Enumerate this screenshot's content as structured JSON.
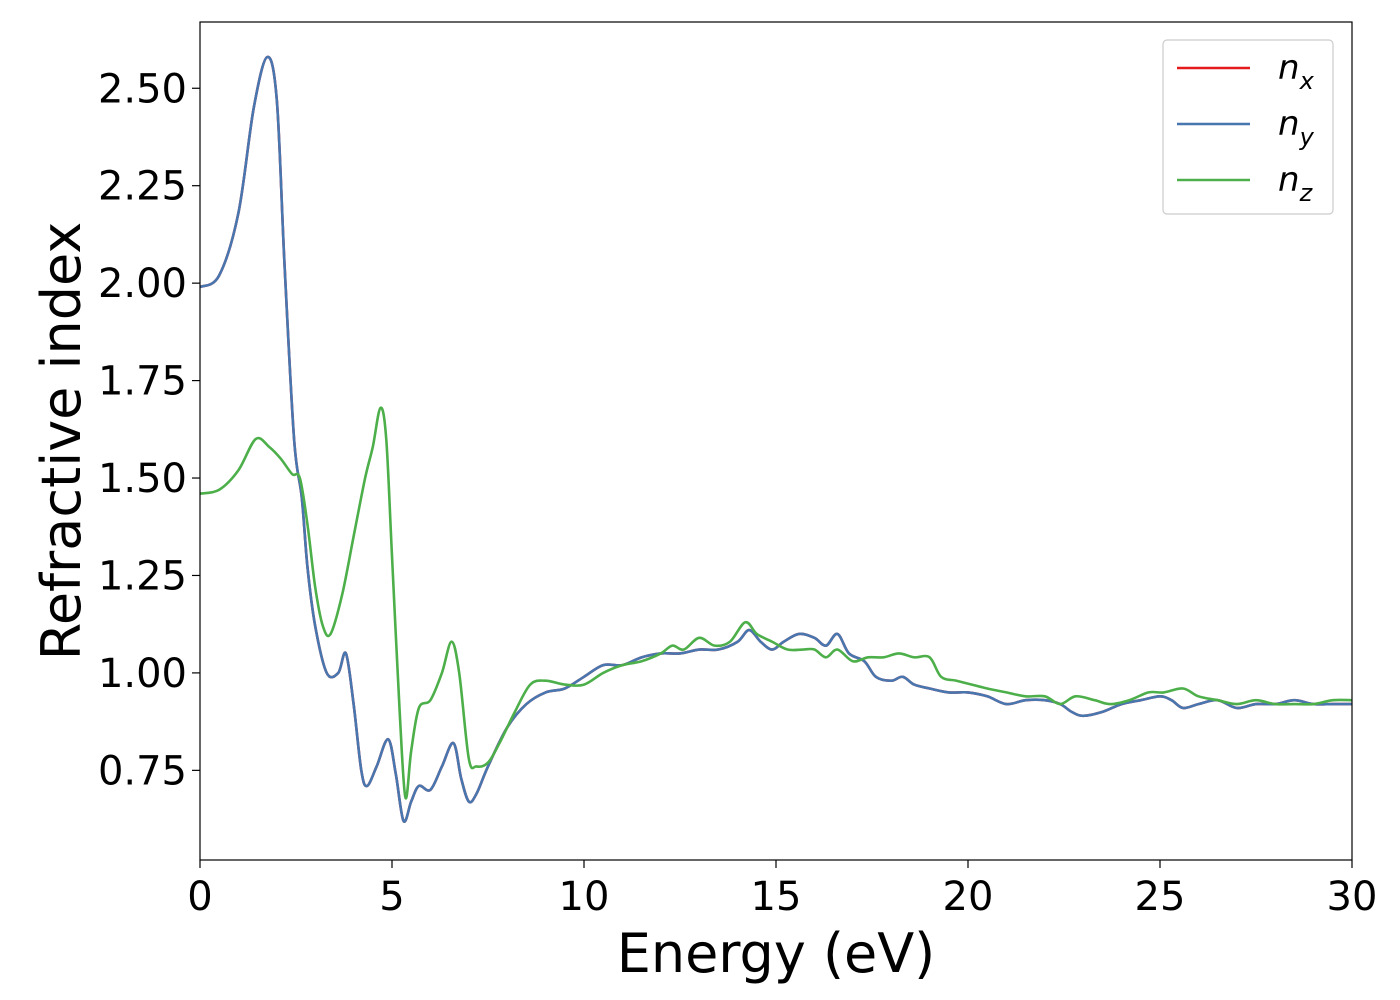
{
  "chart_data": {
    "type": "line",
    "title": "",
    "xlabel": "Energy (eV)",
    "ylabel": "Refractive index",
    "xlim": [
      0,
      30
    ],
    "ylim": [
      0.52,
      2.67
    ],
    "x_ticks": [
      0,
      5,
      10,
      15,
      20,
      25,
      30
    ],
    "x_tick_labels": [
      "0",
      "5",
      "10",
      "15",
      "20",
      "25",
      "30"
    ],
    "y_ticks": [
      0.75,
      1.0,
      1.25,
      1.5,
      1.75,
      2.0,
      2.25,
      2.5
    ],
    "y_tick_labels": [
      "0.75",
      "1.00",
      "1.25",
      "1.50",
      "1.75",
      "2.00",
      "2.25",
      "2.50"
    ],
    "grid": false,
    "legend_position": "top-right",
    "series": [
      {
        "name": "n",
        "sub": "x",
        "color": "#e41a1c",
        "points": [
          [
            0,
            1.99
          ],
          [
            0.5,
            2.02
          ],
          [
            1.0,
            2.18
          ],
          [
            1.4,
            2.45
          ],
          [
            1.75,
            2.58
          ],
          [
            2.0,
            2.47
          ],
          [
            2.2,
            2.05
          ],
          [
            2.45,
            1.6
          ],
          [
            2.65,
            1.45
          ],
          [
            2.8,
            1.27
          ],
          [
            3.0,
            1.12
          ],
          [
            3.3,
            1.0
          ],
          [
            3.6,
            1.0
          ],
          [
            3.8,
            1.05
          ],
          [
            4.0,
            0.92
          ],
          [
            4.2,
            0.75
          ],
          [
            4.35,
            0.71
          ],
          [
            4.6,
            0.76
          ],
          [
            4.9,
            0.83
          ],
          [
            5.1,
            0.74
          ],
          [
            5.3,
            0.62
          ],
          [
            5.5,
            0.67
          ],
          [
            5.7,
            0.71
          ],
          [
            6.0,
            0.7
          ],
          [
            6.3,
            0.76
          ],
          [
            6.6,
            0.82
          ],
          [
            6.8,
            0.73
          ],
          [
            7.0,
            0.67
          ],
          [
            7.2,
            0.69
          ],
          [
            7.5,
            0.76
          ],
          [
            8.0,
            0.86
          ],
          [
            8.5,
            0.92
          ],
          [
            9.0,
            0.95
          ],
          [
            9.5,
            0.96
          ],
          [
            10.0,
            0.99
          ],
          [
            10.5,
            1.02
          ],
          [
            11.0,
            1.02
          ],
          [
            11.5,
            1.04
          ],
          [
            12.0,
            1.05
          ],
          [
            12.5,
            1.05
          ],
          [
            13.0,
            1.06
          ],
          [
            13.5,
            1.06
          ],
          [
            14.0,
            1.08
          ],
          [
            14.3,
            1.11
          ],
          [
            14.6,
            1.08
          ],
          [
            14.9,
            1.06
          ],
          [
            15.2,
            1.08
          ],
          [
            15.6,
            1.1
          ],
          [
            16.0,
            1.09
          ],
          [
            16.3,
            1.07
          ],
          [
            16.6,
            1.1
          ],
          [
            16.9,
            1.05
          ],
          [
            17.3,
            1.03
          ],
          [
            17.6,
            0.99
          ],
          [
            18.0,
            0.98
          ],
          [
            18.3,
            0.99
          ],
          [
            18.6,
            0.97
          ],
          [
            19.0,
            0.96
          ],
          [
            19.5,
            0.95
          ],
          [
            20.0,
            0.95
          ],
          [
            20.5,
            0.94
          ],
          [
            21.0,
            0.92
          ],
          [
            21.5,
            0.93
          ],
          [
            22.0,
            0.93
          ],
          [
            22.4,
            0.92
          ],
          [
            22.7,
            0.9
          ],
          [
            23.0,
            0.89
          ],
          [
            23.5,
            0.9
          ],
          [
            24.0,
            0.92
          ],
          [
            24.5,
            0.93
          ],
          [
            25.0,
            0.94
          ],
          [
            25.3,
            0.93
          ],
          [
            25.6,
            0.91
          ],
          [
            26.0,
            0.92
          ],
          [
            26.5,
            0.93
          ],
          [
            27.0,
            0.91
          ],
          [
            27.5,
            0.92
          ],
          [
            28.0,
            0.92
          ],
          [
            28.5,
            0.93
          ],
          [
            29.0,
            0.92
          ],
          [
            29.5,
            0.92
          ],
          [
            30.0,
            0.92
          ]
        ]
      },
      {
        "name": "n",
        "sub": "y",
        "color": "#4877b0",
        "points": [
          [
            0,
            1.99
          ],
          [
            0.5,
            2.02
          ],
          [
            1.0,
            2.18
          ],
          [
            1.4,
            2.45
          ],
          [
            1.75,
            2.58
          ],
          [
            2.0,
            2.47
          ],
          [
            2.2,
            2.05
          ],
          [
            2.45,
            1.6
          ],
          [
            2.65,
            1.45
          ],
          [
            2.8,
            1.27
          ],
          [
            3.0,
            1.12
          ],
          [
            3.3,
            1.0
          ],
          [
            3.6,
            1.0
          ],
          [
            3.8,
            1.05
          ],
          [
            4.0,
            0.92
          ],
          [
            4.2,
            0.75
          ],
          [
            4.35,
            0.71
          ],
          [
            4.6,
            0.76
          ],
          [
            4.9,
            0.83
          ],
          [
            5.1,
            0.74
          ],
          [
            5.3,
            0.62
          ],
          [
            5.5,
            0.67
          ],
          [
            5.7,
            0.71
          ],
          [
            6.0,
            0.7
          ],
          [
            6.3,
            0.76
          ],
          [
            6.6,
            0.82
          ],
          [
            6.8,
            0.73
          ],
          [
            7.0,
            0.67
          ],
          [
            7.2,
            0.69
          ],
          [
            7.5,
            0.76
          ],
          [
            8.0,
            0.86
          ],
          [
            8.5,
            0.92
          ],
          [
            9.0,
            0.95
          ],
          [
            9.5,
            0.96
          ],
          [
            10.0,
            0.99
          ],
          [
            10.5,
            1.02
          ],
          [
            11.0,
            1.02
          ],
          [
            11.5,
            1.04
          ],
          [
            12.0,
            1.05
          ],
          [
            12.5,
            1.05
          ],
          [
            13.0,
            1.06
          ],
          [
            13.5,
            1.06
          ],
          [
            14.0,
            1.08
          ],
          [
            14.3,
            1.11
          ],
          [
            14.6,
            1.08
          ],
          [
            14.9,
            1.06
          ],
          [
            15.2,
            1.08
          ],
          [
            15.6,
            1.1
          ],
          [
            16.0,
            1.09
          ],
          [
            16.3,
            1.07
          ],
          [
            16.6,
            1.1
          ],
          [
            16.9,
            1.05
          ],
          [
            17.3,
            1.03
          ],
          [
            17.6,
            0.99
          ],
          [
            18.0,
            0.98
          ],
          [
            18.3,
            0.99
          ],
          [
            18.6,
            0.97
          ],
          [
            19.0,
            0.96
          ],
          [
            19.5,
            0.95
          ],
          [
            20.0,
            0.95
          ],
          [
            20.5,
            0.94
          ],
          [
            21.0,
            0.92
          ],
          [
            21.5,
            0.93
          ],
          [
            22.0,
            0.93
          ],
          [
            22.4,
            0.92
          ],
          [
            22.7,
            0.9
          ],
          [
            23.0,
            0.89
          ],
          [
            23.5,
            0.9
          ],
          [
            24.0,
            0.92
          ],
          [
            24.5,
            0.93
          ],
          [
            25.0,
            0.94
          ],
          [
            25.3,
            0.93
          ],
          [
            25.6,
            0.91
          ],
          [
            26.0,
            0.92
          ],
          [
            26.5,
            0.93
          ],
          [
            27.0,
            0.91
          ],
          [
            27.5,
            0.92
          ],
          [
            28.0,
            0.92
          ],
          [
            28.5,
            0.93
          ],
          [
            29.0,
            0.92
          ],
          [
            29.5,
            0.92
          ],
          [
            30.0,
            0.92
          ]
        ]
      },
      {
        "name": "n",
        "sub": "z",
        "color": "#4daf4a",
        "points": [
          [
            0,
            1.46
          ],
          [
            0.5,
            1.47
          ],
          [
            1.0,
            1.52
          ],
          [
            1.45,
            1.6
          ],
          [
            1.8,
            1.58
          ],
          [
            2.1,
            1.55
          ],
          [
            2.4,
            1.51
          ],
          [
            2.6,
            1.5
          ],
          [
            2.8,
            1.38
          ],
          [
            3.0,
            1.22
          ],
          [
            3.2,
            1.12
          ],
          [
            3.4,
            1.1
          ],
          [
            3.7,
            1.2
          ],
          [
            4.0,
            1.35
          ],
          [
            4.3,
            1.5
          ],
          [
            4.5,
            1.58
          ],
          [
            4.7,
            1.68
          ],
          [
            4.85,
            1.6
          ],
          [
            5.0,
            1.3
          ],
          [
            5.2,
            0.9
          ],
          [
            5.35,
            0.68
          ],
          [
            5.5,
            0.8
          ],
          [
            5.7,
            0.91
          ],
          [
            6.0,
            0.93
          ],
          [
            6.3,
            1.0
          ],
          [
            6.55,
            1.08
          ],
          [
            6.75,
            1.0
          ],
          [
            7.0,
            0.78
          ],
          [
            7.2,
            0.76
          ],
          [
            7.5,
            0.77
          ],
          [
            7.8,
            0.82
          ],
          [
            8.2,
            0.9
          ],
          [
            8.6,
            0.97
          ],
          [
            9.0,
            0.98
          ],
          [
            9.5,
            0.97
          ],
          [
            10.0,
            0.97
          ],
          [
            10.5,
            1.0
          ],
          [
            11.0,
            1.02
          ],
          [
            11.5,
            1.03
          ],
          [
            12.0,
            1.05
          ],
          [
            12.3,
            1.07
          ],
          [
            12.6,
            1.06
          ],
          [
            13.0,
            1.09
          ],
          [
            13.4,
            1.07
          ],
          [
            13.8,
            1.08
          ],
          [
            14.2,
            1.13
          ],
          [
            14.5,
            1.1
          ],
          [
            14.9,
            1.08
          ],
          [
            15.3,
            1.06
          ],
          [
            15.7,
            1.06
          ],
          [
            16.0,
            1.06
          ],
          [
            16.3,
            1.04
          ],
          [
            16.6,
            1.06
          ],
          [
            17.0,
            1.03
          ],
          [
            17.4,
            1.04
          ],
          [
            17.8,
            1.04
          ],
          [
            18.2,
            1.05
          ],
          [
            18.6,
            1.04
          ],
          [
            19.0,
            1.04
          ],
          [
            19.3,
            0.99
          ],
          [
            19.7,
            0.98
          ],
          [
            20.1,
            0.97
          ],
          [
            20.5,
            0.96
          ],
          [
            21.0,
            0.95
          ],
          [
            21.5,
            0.94
          ],
          [
            22.0,
            0.94
          ],
          [
            22.4,
            0.92
          ],
          [
            22.8,
            0.94
          ],
          [
            23.3,
            0.93
          ],
          [
            23.7,
            0.92
          ],
          [
            24.2,
            0.93
          ],
          [
            24.7,
            0.95
          ],
          [
            25.1,
            0.95
          ],
          [
            25.6,
            0.96
          ],
          [
            26.0,
            0.94
          ],
          [
            26.5,
            0.93
          ],
          [
            27.0,
            0.92
          ],
          [
            27.5,
            0.93
          ],
          [
            28.0,
            0.92
          ],
          [
            28.5,
            0.92
          ],
          [
            29.0,
            0.92
          ],
          [
            29.5,
            0.93
          ],
          [
            30.0,
            0.93
          ]
        ]
      }
    ]
  }
}
